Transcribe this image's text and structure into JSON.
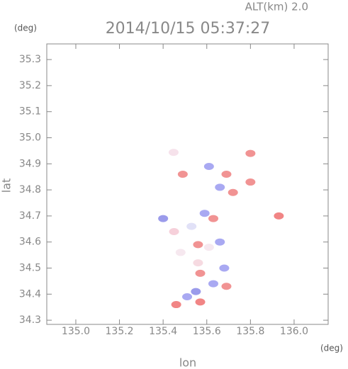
{
  "chart_data": {
    "type": "scatter",
    "title": "2014/10/15 05:37:27",
    "altitude_label": "ALT(km) 2.0",
    "x_label": "lon",
    "y_label": "lat",
    "x_unit": "(deg)",
    "y_unit": "(deg)",
    "xlim": [
      134.867,
      136.156
    ],
    "ylim": [
      34.284,
      35.36
    ],
    "xticks": [
      {
        "value": 135,
        "label": "135.0"
      },
      135.2,
      135.4,
      135.6,
      135.8,
      {
        "value": 136,
        "label": "136.0"
      }
    ],
    "yticks": [
      34.3,
      34.4,
      34.5,
      34.6,
      34.7,
      34.8,
      34.9,
      {
        "value": 35,
        "label": "35.0"
      },
      35.1,
      35.2,
      35.3
    ],
    "x": [
      135.448,
      135.61,
      135.69,
      135.8,
      135.49,
      135.66,
      135.72,
      135.8,
      135.93,
      135.4,
      135.59,
      135.63,
      135.53,
      135.45,
      135.56,
      135.61,
      135.66,
      135.57,
      135.68,
      135.63,
      135.55,
      135.69,
      135.46,
      135.57,
      135.51,
      135.48,
      135.56
    ],
    "y": [
      34.944,
      34.89,
      34.86,
      34.94,
      34.86,
      34.81,
      34.79,
      34.83,
      34.7,
      34.69,
      34.71,
      34.69,
      34.66,
      34.64,
      34.59,
      34.58,
      34.6,
      34.48,
      34.5,
      34.44,
      34.41,
      34.43,
      34.36,
      34.37,
      34.39,
      34.56,
      34.52
    ],
    "colors": [
      "#f4dde8",
      "#9a9af0",
      "#ee8080",
      "#ee8080",
      "#ee8080",
      "#9a9af0",
      "#ee8080",
      "#ee8080",
      "#ee7070",
      "#8a8ae8",
      "#9a9af0",
      "#ee8080",
      "#dcdcf6",
      "#f4c8d4",
      "#ee8080",
      "#f4e4ec",
      "#9a9af0",
      "#ee8080",
      "#9a9af0",
      "#9a9af0",
      "#8a8ae8",
      "#ee8080",
      "#ee7070",
      "#ee7070",
      "#9a9af0",
      "#f4e4ec",
      "#f4d4dc"
    ]
  }
}
